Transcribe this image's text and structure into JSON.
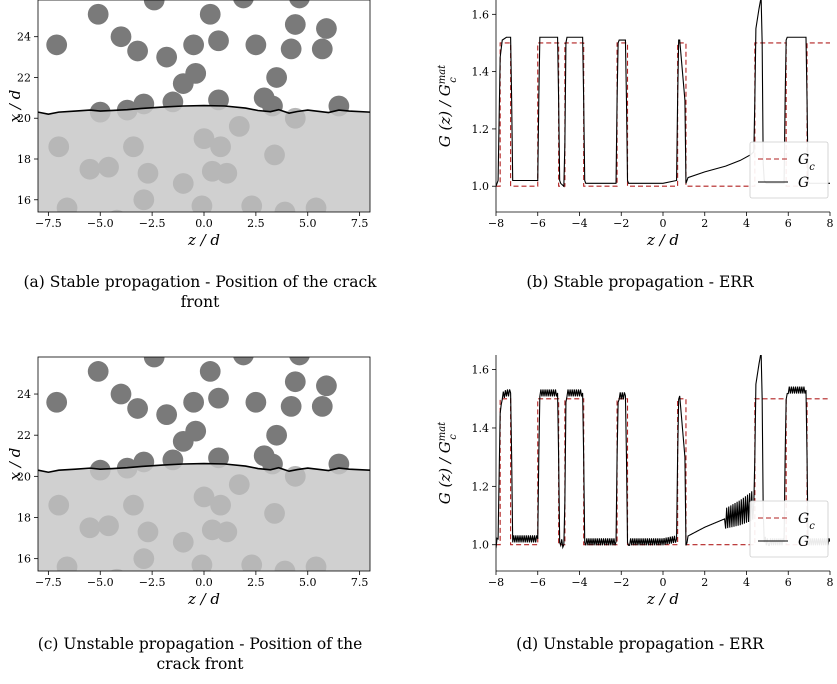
{
  "captions": [
    "(a) Stable propagation - Position of the crack front",
    "(b) Stable propagation - ERR",
    "(c) Unstable propagation - Position of the crack front",
    "(d) Unstable propagation - ERR"
  ],
  "chart_data": [
    {
      "id": "a",
      "type": "scatter",
      "title": "",
      "xlabel": "z / d",
      "ylabel": "x / d",
      "xlim": [
        -8.0,
        8.0
      ],
      "ylim": [
        15.4,
        25.8
      ],
      "xticks": [
        -7.5,
        -5.0,
        -2.5,
        0.0,
        2.5,
        5.0,
        7.5
      ],
      "yticks": [
        16,
        18,
        20,
        22,
        24
      ],
      "particle_radius": 0.5,
      "particles_dark": [
        [
          -7.1,
          23.6
        ],
        [
          -5.1,
          25.1
        ],
        [
          -4.0,
          24.0
        ],
        [
          -3.2,
          23.3
        ],
        [
          -2.4,
          25.8
        ],
        [
          -1.8,
          23.0
        ],
        [
          -1.5,
          20.8
        ],
        [
          -1.0,
          21.7
        ],
        [
          -0.4,
          22.2
        ],
        [
          -0.5,
          23.6
        ],
        [
          0.3,
          25.1
        ],
        [
          0.7,
          23.8
        ],
        [
          0.7,
          20.9
        ],
        [
          1.9,
          25.9
        ],
        [
          2.5,
          23.6
        ],
        [
          2.9,
          21.0
        ],
        [
          3.3,
          20.6
        ],
        [
          3.5,
          22.0
        ],
        [
          4.2,
          23.4
        ],
        [
          4.4,
          24.6
        ],
        [
          4.6,
          25.9
        ],
        [
          5.7,
          23.4
        ],
        [
          5.9,
          24.4
        ],
        [
          6.5,
          20.6
        ],
        [
          -5.0,
          20.3
        ],
        [
          -3.7,
          20.4
        ],
        [
          -2.9,
          20.7
        ]
      ],
      "particles_light": [
        [
          -7.0,
          18.6
        ],
        [
          -5.5,
          17.5
        ],
        [
          -4.6,
          17.6
        ],
        [
          -3.4,
          18.6
        ],
        [
          -2.7,
          17.3
        ],
        [
          -2.9,
          16.0
        ],
        [
          -1.0,
          16.8
        ],
        [
          -0.1,
          15.7
        ],
        [
          0.0,
          19.0
        ],
        [
          0.4,
          17.4
        ],
        [
          0.8,
          18.6
        ],
        [
          1.1,
          17.3
        ],
        [
          1.7,
          19.6
        ],
        [
          2.3,
          15.7
        ],
        [
          3.4,
          18.2
        ],
        [
          3.9,
          15.4
        ],
        [
          4.4,
          20.0
        ],
        [
          5.4,
          15.6
        ],
        [
          -6.6,
          15.6
        ],
        [
          -4.2,
          15.0
        ]
      ],
      "crack_front": {
        "z": [
          -8,
          -7.5,
          -7,
          -6.2,
          -5.5,
          -5.0,
          -4.4,
          -3.7,
          -3,
          -2,
          -1,
          0,
          1,
          2,
          2.6,
          3.2,
          3.6,
          4.1,
          4.5,
          5,
          5.5,
          6.0,
          6.5,
          7,
          8
        ],
        "x": [
          20.3,
          20.2,
          20.3,
          20.35,
          20.4,
          20.35,
          20.38,
          20.42,
          20.48,
          20.55,
          20.6,
          20.62,
          20.6,
          20.5,
          20.38,
          20.32,
          20.42,
          20.25,
          20.33,
          20.4,
          20.34,
          20.28,
          20.4,
          20.35,
          20.3
        ]
      },
      "fill_below": true
    },
    {
      "id": "b",
      "type": "line",
      "title": "",
      "xlabel": "z / d",
      "ylabel": "G (z) / G_c^mat",
      "xlim": [
        -8.0,
        8.0
      ],
      "ylim": [
        0.91,
        1.65
      ],
      "xticks": [
        -8,
        -6,
        -4,
        -2,
        0,
        2,
        4,
        6,
        8
      ],
      "yticks": [
        1.0,
        1.2,
        1.4,
        1.6
      ],
      "legend": {
        "location": "lower-right",
        "labels": [
          "G_c",
          "G"
        ]
      },
      "series": [
        {
          "name": "G_c",
          "style": "dashed",
          "color": "#b22222",
          "x": [
            -8,
            -7.8,
            -7.8,
            -7.3,
            -7.3,
            -6,
            -6,
            -5,
            -5,
            -4.7,
            -4.7,
            -3.8,
            -3.8,
            -2.2,
            -2.2,
            -1.7,
            -1.7,
            0.7,
            0.7,
            1.1,
            1.1,
            4.4,
            4.4,
            5.9,
            5.9,
            6.9,
            6.9,
            8
          ],
          "y": [
            1.0,
            1.0,
            1.5,
            1.5,
            1.0,
            1.0,
            1.5,
            1.5,
            1.0,
            1.0,
            1.5,
            1.5,
            1.0,
            1.0,
            1.5,
            1.5,
            1.0,
            1.0,
            1.5,
            1.5,
            1.0,
            1.0,
            1.5,
            1.5,
            1.0,
            1.0,
            1.5,
            1.5
          ]
        },
        {
          "name": "G",
          "style": "solid",
          "color": "#000000",
          "x": [
            -8,
            -7.9,
            -7.8,
            -7.7,
            -7.5,
            -7.3,
            -7.25,
            -7.2,
            -6.8,
            -6.2,
            -6.0,
            -5.95,
            -5.9,
            -5.5,
            -5.05,
            -5.0,
            -4.95,
            -4.9,
            -4.75,
            -4.7,
            -4.65,
            -4.6,
            -4.2,
            -3.85,
            -3.8,
            -3.75,
            -3.7,
            -3.3,
            -2.7,
            -2.25,
            -2.2,
            -2.15,
            -2.1,
            -1.8,
            -1.75,
            -1.7,
            -1.65,
            -1.6,
            -1.0,
            0.0,
            0.65,
            0.7,
            0.75,
            0.8,
            1.05,
            1.1,
            1.15,
            1.2,
            2.0,
            3.0,
            3.7,
            4.2,
            4.35,
            4.4,
            4.45,
            4.6,
            4.7,
            4.75,
            4.8,
            4.85,
            4.95,
            5.1,
            5.4,
            5.8,
            5.85,
            5.9,
            5.95,
            6.0,
            6.5,
            6.85,
            6.9,
            6.95,
            7.0,
            8.0
          ],
          "y": [
            1.0,
            1.02,
            1.45,
            1.51,
            1.52,
            1.52,
            1.3,
            1.02,
            1.02,
            1.02,
            1.02,
            1.3,
            1.52,
            1.52,
            1.52,
            1.3,
            1.02,
            1.01,
            1.0,
            1.15,
            1.5,
            1.52,
            1.52,
            1.52,
            1.3,
            1.02,
            1.01,
            1.01,
            1.01,
            1.01,
            1.3,
            1.5,
            1.51,
            1.51,
            1.3,
            1.02,
            1.01,
            1.01,
            1.01,
            1.01,
            1.02,
            1.3,
            1.51,
            1.51,
            1.3,
            1.01,
            1.02,
            1.03,
            1.05,
            1.07,
            1.09,
            1.11,
            1.12,
            1.3,
            1.55,
            1.62,
            1.66,
            1.5,
            1.08,
            1.02,
            1.01,
            1.01,
            1.01,
            1.01,
            1.3,
            1.51,
            1.52,
            1.52,
            1.52,
            1.52,
            1.3,
            1.02,
            1.01,
            1.01
          ]
        }
      ]
    },
    {
      "id": "c",
      "type": "scatter",
      "title": "",
      "xlabel": "z / d",
      "ylabel": "x / d",
      "xlim": [
        -8.0,
        8.0
      ],
      "ylim": [
        15.4,
        25.8
      ],
      "xticks": [
        -7.5,
        -5.0,
        -2.5,
        0.0,
        2.5,
        5.0,
        7.5
      ],
      "yticks": [
        16,
        18,
        20,
        22,
        24
      ],
      "particle_radius": 0.5,
      "particles_dark": [
        [
          -7.1,
          23.6
        ],
        [
          -5.1,
          25.1
        ],
        [
          -4.0,
          24.0
        ],
        [
          -3.2,
          23.3
        ],
        [
          -2.4,
          25.8
        ],
        [
          -1.8,
          23.0
        ],
        [
          -1.5,
          20.8
        ],
        [
          -1.0,
          21.7
        ],
        [
          -0.4,
          22.2
        ],
        [
          -0.5,
          23.6
        ],
        [
          0.3,
          25.1
        ],
        [
          0.7,
          23.8
        ],
        [
          0.7,
          20.9
        ],
        [
          1.9,
          25.9
        ],
        [
          2.5,
          23.6
        ],
        [
          2.9,
          21.0
        ],
        [
          3.3,
          20.6
        ],
        [
          3.5,
          22.0
        ],
        [
          4.2,
          23.4
        ],
        [
          4.4,
          24.6
        ],
        [
          4.6,
          25.9
        ],
        [
          5.7,
          23.4
        ],
        [
          5.9,
          24.4
        ],
        [
          6.5,
          20.6
        ],
        [
          -5.0,
          20.3
        ],
        [
          -3.7,
          20.4
        ],
        [
          -2.9,
          20.7
        ]
      ],
      "particles_light": [
        [
          -7.0,
          18.6
        ],
        [
          -5.5,
          17.5
        ],
        [
          -4.6,
          17.6
        ],
        [
          -3.4,
          18.6
        ],
        [
          -2.7,
          17.3
        ],
        [
          -2.9,
          16.0
        ],
        [
          -1.0,
          16.8
        ],
        [
          -0.1,
          15.7
        ],
        [
          0.0,
          19.0
        ],
        [
          0.4,
          17.4
        ],
        [
          0.8,
          18.6
        ],
        [
          1.1,
          17.3
        ],
        [
          1.7,
          19.6
        ],
        [
          2.3,
          15.7
        ],
        [
          3.4,
          18.2
        ],
        [
          3.9,
          15.4
        ],
        [
          4.4,
          20.0
        ],
        [
          5.4,
          15.6
        ],
        [
          -6.6,
          15.6
        ],
        [
          -4.2,
          15.0
        ]
      ],
      "crack_front": {
        "z": [
          -8,
          -7.5,
          -7,
          -6.2,
          -5.5,
          -5.0,
          -4.4,
          -3.7,
          -3,
          -2,
          -1,
          0,
          1,
          2,
          2.6,
          3.2,
          3.6,
          4.1,
          4.5,
          5,
          5.5,
          6.0,
          6.5,
          7,
          8
        ],
        "x": [
          20.3,
          20.2,
          20.3,
          20.35,
          20.4,
          20.35,
          20.38,
          20.42,
          20.48,
          20.55,
          20.6,
          20.62,
          20.6,
          20.5,
          20.38,
          20.32,
          20.42,
          20.25,
          20.33,
          20.4,
          20.34,
          20.28,
          20.4,
          20.35,
          20.3
        ]
      },
      "fill_below": true
    },
    {
      "id": "d",
      "type": "line",
      "title": "",
      "xlabel": "z / d",
      "ylabel": "G (z) / G_c^mat",
      "xlim": [
        -8.0,
        8.0
      ],
      "ylim": [
        0.91,
        1.65
      ],
      "xticks": [
        -8,
        -6,
        -4,
        -2,
        0,
        2,
        4,
        6,
        8
      ],
      "yticks": [
        1.0,
        1.2,
        1.4,
        1.6
      ],
      "legend": {
        "location": "lower-right",
        "labels": [
          "G_c",
          "G"
        ]
      },
      "series": [
        {
          "name": "G_c",
          "style": "dashed",
          "color": "#b22222",
          "x": [
            -8,
            -7.8,
            -7.8,
            -7.3,
            -7.3,
            -6,
            -6,
            -5,
            -5,
            -4.7,
            -4.7,
            -3.8,
            -3.8,
            -2.2,
            -2.2,
            -1.7,
            -1.7,
            0.7,
            0.7,
            1.1,
            1.1,
            4.4,
            4.4,
            5.9,
            5.9,
            6.9,
            6.9,
            8
          ],
          "y": [
            1.0,
            1.0,
            1.5,
            1.5,
            1.0,
            1.0,
            1.5,
            1.5,
            1.0,
            1.0,
            1.5,
            1.5,
            1.0,
            1.0,
            1.5,
            1.5,
            1.0,
            1.0,
            1.5,
            1.5,
            1.0,
            1.0,
            1.5,
            1.5,
            1.0,
            1.0,
            1.5,
            1.5
          ]
        },
        {
          "name": "G",
          "style": "solid",
          "color": "#000000",
          "oscillating": true,
          "x": [
            -8,
            -7.9,
            -7.8,
            -7.7,
            -7.5,
            -7.3,
            -7.25,
            -7.2,
            -6.8,
            -6.2,
            -6.0,
            -5.95,
            -5.9,
            -5.5,
            -5.05,
            -5.0,
            -4.95,
            -4.9,
            -4.75,
            -4.7,
            -4.65,
            -4.6,
            -4.2,
            -3.85,
            -3.8,
            -3.75,
            -3.7,
            -3.3,
            -2.7,
            -2.25,
            -2.2,
            -2.15,
            -2.1,
            -1.8,
            -1.75,
            -1.7,
            -1.65,
            -1.6,
            -1.0,
            0.0,
            0.65,
            0.7,
            0.75,
            0.8,
            1.05,
            1.1,
            1.15,
            1.2,
            2.0,
            3.0,
            3.7,
            4.2,
            4.35,
            4.4,
            4.45,
            4.6,
            4.7,
            4.75,
            4.8,
            4.85,
            4.95,
            5.1,
            5.4,
            5.8,
            5.85,
            5.9,
            5.95,
            6.0,
            6.5,
            6.85,
            6.9,
            6.95,
            7.0,
            8.0
          ],
          "y": [
            1.0,
            1.02,
            1.45,
            1.51,
            1.52,
            1.52,
            1.3,
            1.02,
            1.02,
            1.02,
            1.02,
            1.3,
            1.52,
            1.52,
            1.52,
            1.3,
            1.02,
            1.01,
            1.0,
            1.15,
            1.5,
            1.52,
            1.52,
            1.52,
            1.3,
            1.02,
            1.01,
            1.01,
            1.01,
            1.01,
            1.3,
            1.5,
            1.51,
            1.51,
            1.3,
            1.02,
            1.01,
            1.01,
            1.01,
            1.01,
            1.02,
            1.3,
            1.51,
            1.51,
            1.3,
            1.01,
            1.02,
            1.03,
            1.06,
            1.09,
            1.11,
            1.13,
            1.14,
            1.3,
            1.55,
            1.62,
            1.66,
            1.5,
            1.12,
            1.02,
            1.01,
            1.01,
            1.01,
            1.01,
            1.3,
            1.51,
            1.53,
            1.53,
            1.53,
            1.53,
            1.3,
            1.02,
            1.01,
            1.01
          ]
        }
      ]
    }
  ]
}
